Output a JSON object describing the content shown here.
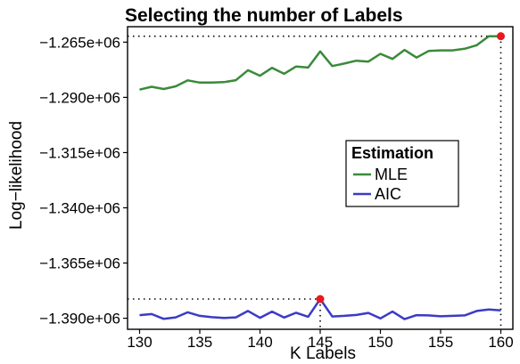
{
  "chart_data": {
    "type": "line",
    "title": "Selecting the number of Labels",
    "xlabel": "K Labels",
    "ylabel": "Log−likelihood",
    "xlim": [
      129,
      161
    ],
    "ylim": [
      -1395000,
      -1258000
    ],
    "xticks": [
      130,
      135,
      140,
      145,
      150,
      155,
      160
    ],
    "xtick_labels": [
      "130",
      "135",
      "140",
      "145",
      "150",
      "155",
      "160"
    ],
    "yticks": [
      -1265000,
      -1290000,
      -1315000,
      -1340000,
      -1365000,
      -1390000
    ],
    "ytick_labels": [
      "−1.265e+06",
      "−1.290e+06",
      "−1.315e+06",
      "−1.340e+06",
      "−1.365e+06",
      "−1.390e+06"
    ],
    "grid": false,
    "legend": {
      "title": "Estimation",
      "position": "center-right",
      "entries": [
        "MLE",
        "AIC"
      ]
    },
    "x": [
      130,
      131,
      132,
      133,
      134,
      135,
      136,
      137,
      138,
      139,
      140,
      141,
      142,
      143,
      144,
      145,
      146,
      147,
      148,
      149,
      150,
      151,
      152,
      153,
      154,
      155,
      156,
      157,
      158,
      159,
      160
    ],
    "series": [
      {
        "name": "MLE",
        "color": "#3a8a3a",
        "values": [
          -1286500,
          -1285200,
          -1286200,
          -1285000,
          -1282300,
          -1283300,
          -1283300,
          -1283100,
          -1282200,
          -1277700,
          -1280200,
          -1276600,
          -1279300,
          -1276000,
          -1276500,
          -1269200,
          -1275800,
          -1274700,
          -1273400,
          -1273800,
          -1270300,
          -1272600,
          -1268500,
          -1272000,
          -1269000,
          -1268700,
          -1268700,
          -1268000,
          -1266400,
          -1262300,
          -1262300
        ]
      },
      {
        "name": "AIC",
        "color": "#3b3bc6",
        "values": [
          -1388600,
          -1388100,
          -1390300,
          -1389600,
          -1387300,
          -1388900,
          -1389500,
          -1389900,
          -1389600,
          -1386700,
          -1389800,
          -1387000,
          -1389700,
          -1387500,
          -1389300,
          -1381300,
          -1389200,
          -1388900,
          -1388500,
          -1387600,
          -1390100,
          -1387000,
          -1390400,
          -1388600,
          -1388700,
          -1389100,
          -1388900,
          -1388700,
          -1386700,
          -1386000,
          -1386400
        ]
      }
    ],
    "highlights": [
      {
        "series": "MLE",
        "x": 160,
        "y": -1262300,
        "color": "#e8181e"
      },
      {
        "series": "AIC",
        "x": 145,
        "y": -1381300,
        "color": "#e8181e"
      }
    ]
  }
}
